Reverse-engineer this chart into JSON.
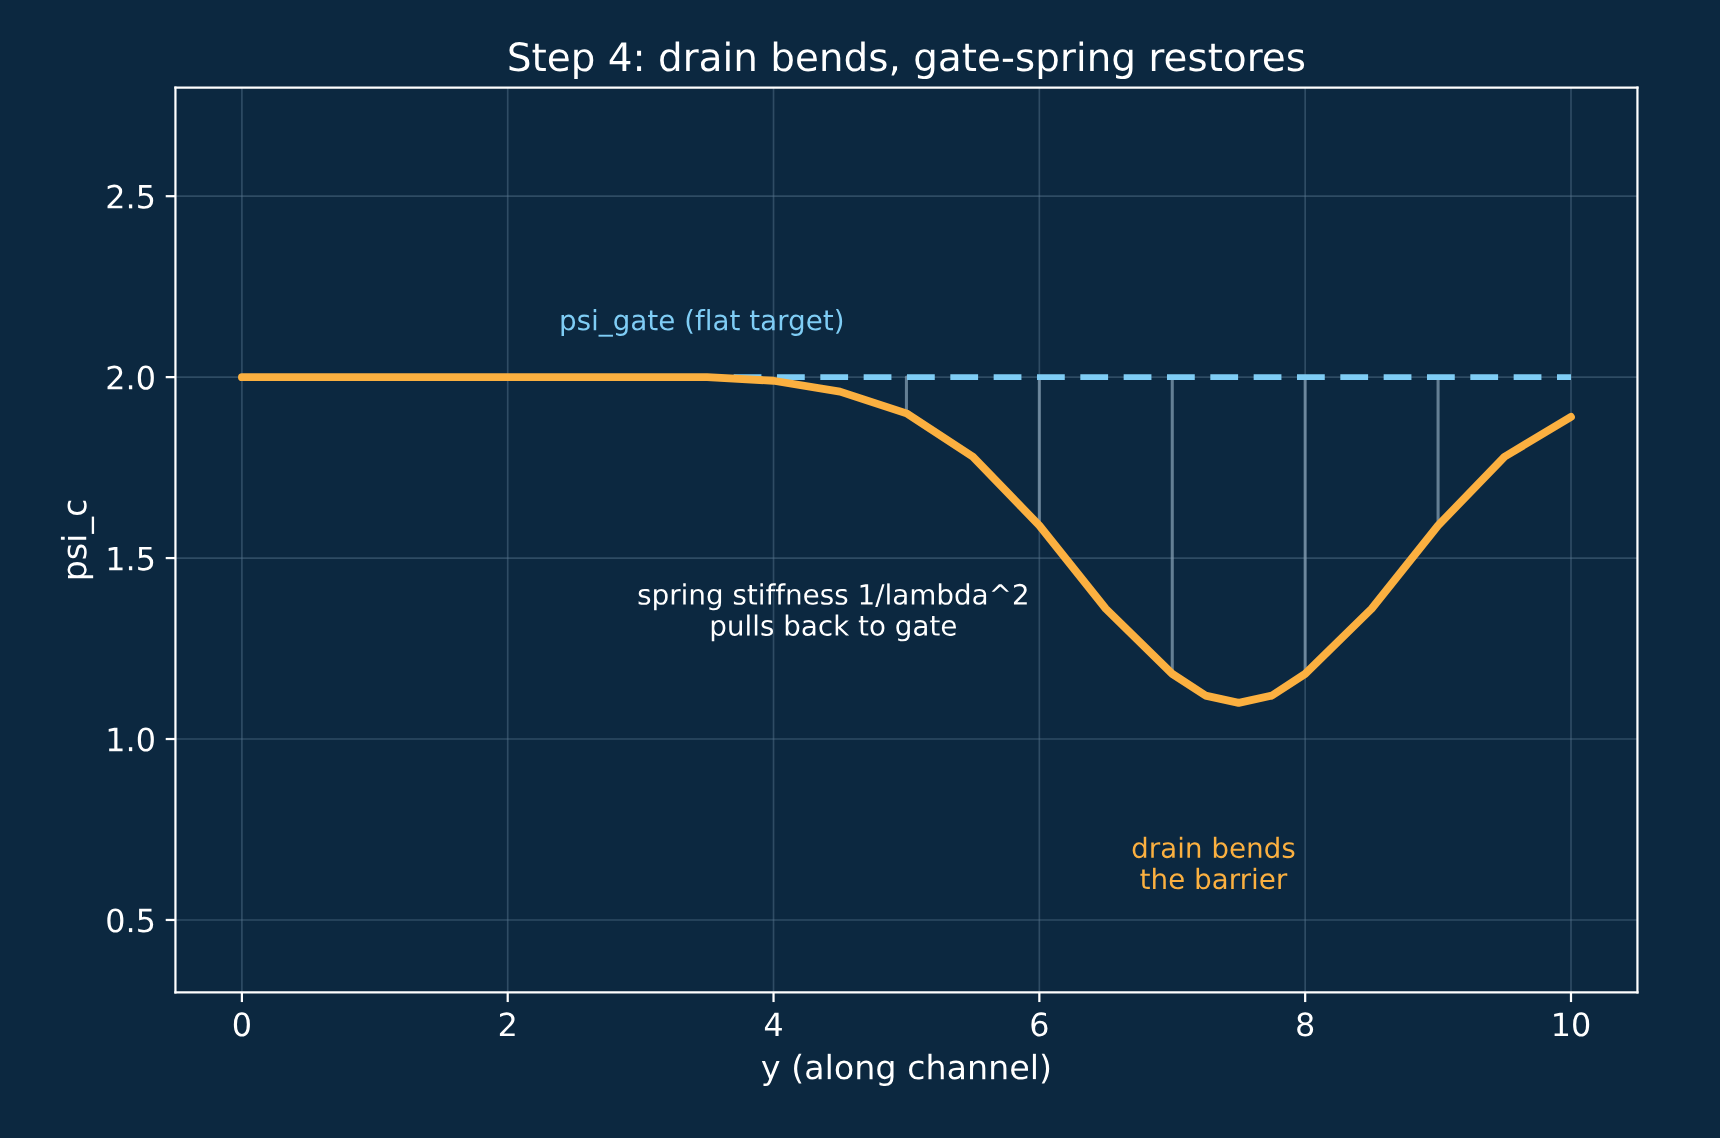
{
  "chart_data": {
    "type": "line",
    "title": "Step 4: drain bends, gate-spring restores",
    "xlabel": "y (along channel)",
    "ylabel": "psi_c",
    "xlim": [
      -0.5,
      10.5
    ],
    "ylim": [
      0.3,
      2.8
    ],
    "xticks": [
      0,
      2,
      4,
      6,
      8,
      10
    ],
    "yticks": [
      0.5,
      {
        "value": 1,
        "label": "1.0"
      },
      1.5,
      {
        "value": 2,
        "label": "2.0"
      },
      2.5
    ],
    "grid": true,
    "legend": false,
    "series": [
      {
        "type": "line",
        "color": "#8aa4b8",
        "x": [
          5,
          5
        ],
        "values": [
          1.9,
          2.0
        ]
      },
      {
        "type": "line",
        "color": "#8aa4b8",
        "x": [
          6,
          6
        ],
        "values": [
          1.59,
          2.0
        ]
      },
      {
        "type": "line",
        "color": "#8aa4b8",
        "x": [
          7,
          7
        ],
        "values": [
          1.18,
          2.0
        ]
      },
      {
        "type": "line",
        "color": "#8aa4b8",
        "x": [
          8,
          8
        ],
        "values": [
          1.18,
          2.0
        ]
      },
      {
        "type": "line",
        "color": "#8aa4b8",
        "x": [
          9,
          9
        ],
        "values": [
          1.59,
          2.0
        ]
      },
      {
        "type": "line",
        "color": "#7fcdf5",
        "line_style": "dashed",
        "x": [
          3.7,
          10
        ],
        "values": [
          2.0,
          2.0
        ]
      },
      {
        "color": "#fbb040",
        "line_style": "solid",
        "x": [
          0,
          1,
          2,
          3,
          3.5,
          4,
          4.5,
          5,
          5.5,
          6,
          6.5,
          7,
          7.25,
          7.5,
          7.75,
          8,
          8.5,
          9,
          9.5,
          10
        ],
        "values": [
          2.0,
          2.0,
          2.0,
          2.0,
          2.0,
          1.99,
          1.96,
          1.9,
          1.78,
          1.59,
          1.36,
          1.18,
          1.12,
          1.1,
          1.12,
          1.18,
          1.36,
          1.59,
          1.78,
          1.89
        ]
      }
    ],
    "annotations": [
      "psi_gate (flat target)",
      "spring stiffness 1/lambda^2\npulls back to gate",
      "drain bends\nthe barrier"
    ]
  }
}
